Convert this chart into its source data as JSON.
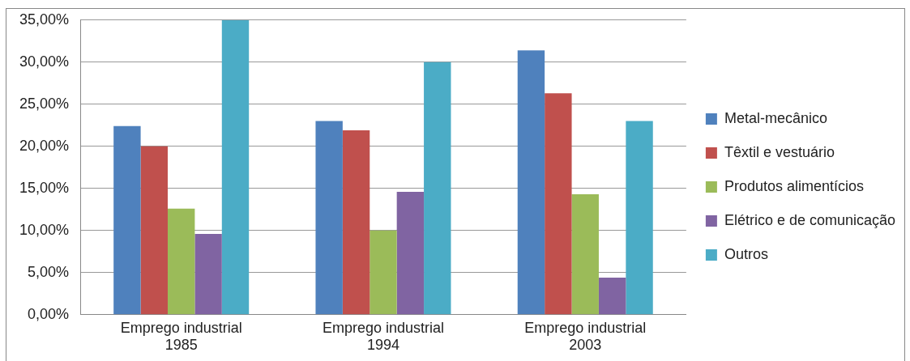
{
  "chart_data": {
    "type": "bar",
    "categories": [
      "Emprego industrial 1985",
      "Emprego industrial 1994",
      "Emprego industrial 2003"
    ],
    "series": [
      {
        "name": "Metal-mecânico",
        "color": "#4f81bd",
        "values": [
          22.4,
          23.0,
          31.4
        ]
      },
      {
        "name": "Têxtil e vestuário",
        "color": "#c0504d",
        "values": [
          20.0,
          21.9,
          26.3
        ]
      },
      {
        "name": "Produtos alimentícios",
        "color": "#9bbb59",
        "values": [
          12.6,
          10.0,
          14.3
        ]
      },
      {
        "name": "Elétrico e de comunicação",
        "color": "#8064a2",
        "values": [
          9.6,
          14.6,
          4.4
        ]
      },
      {
        "name": "Outros",
        "color": "#4bacc6",
        "values": [
          35.0,
          30.0,
          23.0
        ]
      }
    ],
    "ylim": [
      0,
      35
    ],
    "yticks": [
      {
        "value": 0,
        "label": "0,00%"
      },
      {
        "value": 5,
        "label": "5,00%"
      },
      {
        "value": 10,
        "label": "10,00%"
      },
      {
        "value": 15,
        "label": "15,00%"
      },
      {
        "value": 20,
        "label": "20,00%"
      },
      {
        "value": 25,
        "label": "25,00%"
      },
      {
        "value": 30,
        "label": "30,00%"
      },
      {
        "value": 35,
        "label": "35,00%"
      }
    ],
    "grid": "y",
    "legend": "right"
  }
}
